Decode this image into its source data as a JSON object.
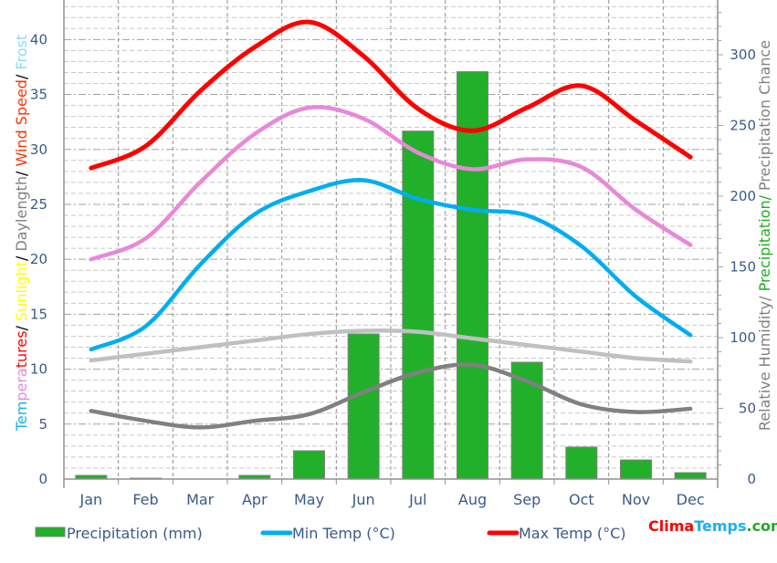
{
  "chart_data": {
    "type": "line",
    "categories": [
      "Jan",
      "Feb",
      "Mar",
      "Apr",
      "May",
      "Jun",
      "Jul",
      "Aug",
      "Sep",
      "Oct",
      "Nov",
      "Dec"
    ],
    "left_axis": {
      "title_parts": [
        {
          "text": "Tem",
          "color": "#1ab0f0"
        },
        {
          "text": "pera",
          "color": "#e888d8"
        },
        {
          "text": "tures",
          "color": "#ff0000"
        },
        {
          "text": "/ ",
          "color": "#000000"
        },
        {
          "text": "Sunlight",
          "color": "#ffff00"
        },
        {
          "text": "/ ",
          "color": "#000000"
        },
        {
          "text": "Daylength",
          "color": "#808080"
        },
        {
          "text": "/ ",
          "color": "#000000"
        },
        {
          "text": "Wind Speed",
          "color": "#ff3300"
        },
        {
          "text": "/ ",
          "color": "#000000"
        },
        {
          "text": "Frost",
          "color": "#8fd8f8"
        }
      ],
      "ylim": [
        0,
        43.6
      ],
      "ticks": [
        "0",
        "5",
        "10",
        "15",
        "20",
        "25",
        "30",
        "35",
        "40"
      ]
    },
    "right_axis": {
      "title_parts": [
        {
          "text": "Relative Humidity/ ",
          "color": "#808080"
        },
        {
          "text": "Precipitation/ ",
          "color": "#22aa22"
        },
        {
          "text": "Precipitation Chance",
          "color": "#808080"
        }
      ],
      "ylim": [
        0,
        338.7
      ],
      "ticks": [
        "0",
        "50",
        "100",
        "150",
        "200",
        "250",
        "300"
      ]
    },
    "bars": {
      "name": "Precipitation (mm)",
      "color": "#22b02a",
      "axis": "right",
      "values": [
        2.6,
        0.6,
        0,
        2.6,
        20,
        102.6,
        246,
        288,
        82.6,
        22.6,
        13.5,
        4.5
      ]
    },
    "series": [
      {
        "name": "Max Temp (°C)",
        "color": "#ff0000",
        "axis": "left",
        "legend": true,
        "values": [
          28.3,
          30.3,
          35.3,
          39.3,
          41.6,
          38.5,
          33.7,
          31.7,
          33.8,
          35.8,
          32.6,
          29.3
        ]
      },
      {
        "name": "Mean Temp",
        "color": "#e888d8",
        "axis": "left",
        "legend": false,
        "values": [
          20.0,
          21.9,
          27.0,
          31.4,
          33.8,
          32.8,
          29.7,
          28.2,
          29.1,
          28.4,
          24.5,
          21.3
        ]
      },
      {
        "name": "Min Temp (°C)",
        "color": "#00aef0",
        "axis": "left",
        "legend": true,
        "values": [
          11.8,
          13.9,
          19.5,
          24.1,
          26.2,
          27.2,
          25.5,
          24.5,
          24.0,
          21.2,
          16.6,
          13.1
        ]
      },
      {
        "name": "Daylength",
        "color": "#c0c0c0",
        "axis": "left",
        "legend": false,
        "values": [
          10.8,
          11.4,
          12.0,
          12.6,
          13.2,
          13.5,
          13.4,
          12.8,
          12.2,
          11.6,
          11.0,
          10.7
        ]
      },
      {
        "name": "Wind Speed",
        "color": "#808080",
        "axis": "left",
        "legend": false,
        "values": [
          6.2,
          5.3,
          4.7,
          5.3,
          5.9,
          7.9,
          9.7,
          10.4,
          8.9,
          6.8,
          6.1,
          6.4
        ]
      }
    ],
    "legend": {
      "placement": "bottom",
      "items": [
        "Precipitation (mm)",
        "Min Temp (°C)",
        "Max Temp (°C)"
      ]
    },
    "grid": true
  },
  "brand": {
    "parts": [
      {
        "text": "Clima",
        "color": "#ff0000"
      },
      {
        "text": "Temps",
        "color": "#1ab0f0"
      },
      {
        "text": ".com",
        "color": "#22aa22"
      }
    ]
  }
}
